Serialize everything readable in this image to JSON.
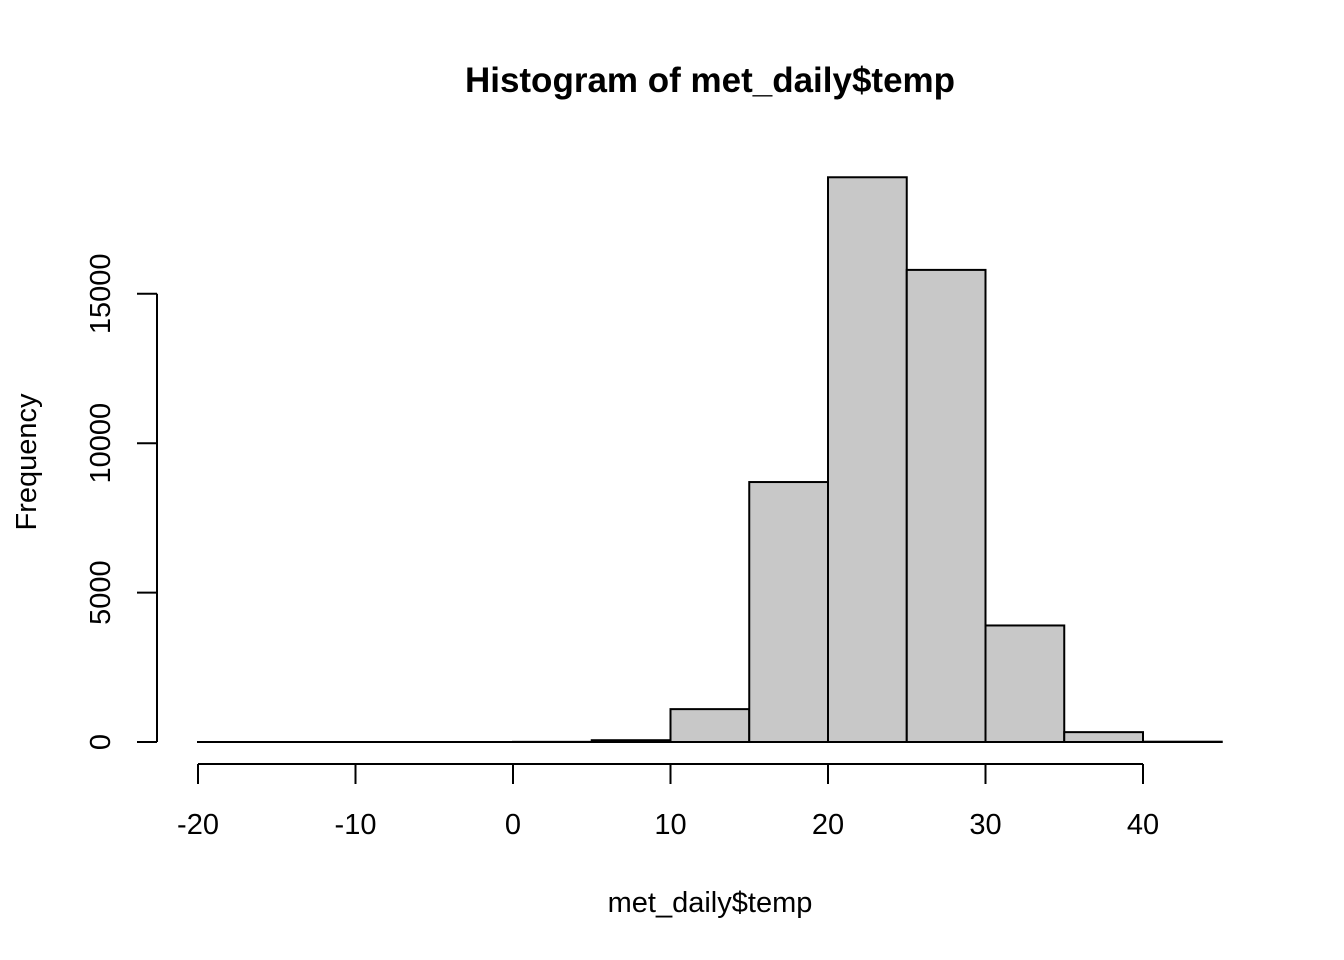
{
  "chart_data": {
    "type": "bar",
    "title": "Histogram of met_daily$temp",
    "xlabel": "met_daily$temp",
    "ylabel": "Frequency",
    "bins": [
      {
        "from": -20,
        "to": -15,
        "count": 0
      },
      {
        "from": -15,
        "to": -10,
        "count": 0
      },
      {
        "from": -10,
        "to": -5,
        "count": 0
      },
      {
        "from": -5,
        "to": 0,
        "count": 0
      },
      {
        "from": 0,
        "to": 5,
        "count": 5
      },
      {
        "from": 5,
        "to": 10,
        "count": 60
      },
      {
        "from": 10,
        "to": 15,
        "count": 1100
      },
      {
        "from": 15,
        "to": 20,
        "count": 8700
      },
      {
        "from": 20,
        "to": 25,
        "count": 18900
      },
      {
        "from": 25,
        "to": 30,
        "count": 15800
      },
      {
        "from": 30,
        "to": 35,
        "count": 3900
      },
      {
        "from": 35,
        "to": 40,
        "count": 330
      },
      {
        "from": 40,
        "to": 45,
        "count": 10
      }
    ],
    "x_ticks": [
      -20,
      -10,
      0,
      10,
      20,
      30,
      40
    ],
    "y_ticks": [
      0,
      5000,
      10000,
      15000
    ],
    "xlim": [
      -20,
      45
    ],
    "ylim": [
      0,
      18900
    ],
    "bar_color": "#c8c8c8",
    "grid": false
  }
}
